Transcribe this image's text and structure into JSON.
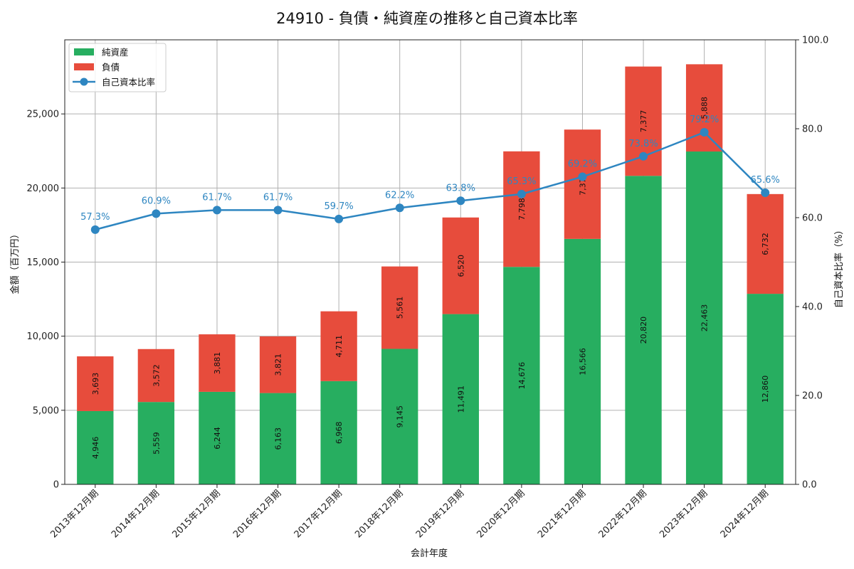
{
  "chart_data": {
    "type": "bar",
    "stacked": true,
    "title": "24910 - 負債・純資産の推移と自己資本比率",
    "xlabel": "会計年度",
    "ylabel": "金額（百万円）",
    "y2label": "自己資本比率（%）",
    "ylim": [
      0,
      30000
    ],
    "y2lim": [
      0,
      100
    ],
    "yticks": [
      "0",
      "5,000",
      "10,000",
      "15,000",
      "20,000",
      "25,000"
    ],
    "y2ticks": [
      "0.0",
      "20.0",
      "40.0",
      "60.0",
      "80.0",
      "100.0"
    ],
    "grid": true,
    "legend_position": "top-left",
    "categories": [
      "2013年12月期",
      "2014年12月期",
      "2015年12月期",
      "2016年12月期",
      "2017年12月期",
      "2018年12月期",
      "2019年12月期",
      "2020年12月期",
      "2021年12月期",
      "2022年12月期",
      "2023年12月期",
      "2024年12月期"
    ],
    "series": [
      {
        "name": "純資産",
        "kind": "bar",
        "color": "#27ae60",
        "values": [
          4946,
          5559,
          6244,
          6163,
          6968,
          9145,
          11491,
          14676,
          16566,
          20820,
          22463,
          12860
        ],
        "labels": [
          "4,946",
          "5,559",
          "6,244",
          "6,163",
          "6,968",
          "9,145",
          "11,491",
          "14,676",
          "16,566",
          "20,820",
          "22,463",
          "12,860"
        ]
      },
      {
        "name": "負債",
        "kind": "bar",
        "color": "#e74c3c",
        "values": [
          3693,
          3572,
          3881,
          3821,
          4711,
          5561,
          6520,
          7798,
          7378,
          7377,
          5888,
          6732
        ],
        "labels": [
          "3,693",
          "3,572",
          "3,881",
          "3,821",
          "4,711",
          "5,561",
          "6,520",
          "7,798",
          "7,378",
          "7,377",
          "5,888",
          "6,732"
        ]
      },
      {
        "name": "自己資本比率",
        "kind": "line",
        "axis": "right",
        "color": "#2e86c1",
        "values": [
          57.3,
          60.9,
          61.7,
          61.7,
          59.7,
          62.2,
          63.8,
          65.3,
          69.2,
          73.8,
          79.2,
          65.6
        ],
        "labels": [
          "57.3%",
          "60.9%",
          "61.7%",
          "61.7%",
          "59.7%",
          "62.2%",
          "63.8%",
          "65.3%",
          "69.2%",
          "73.8%",
          "79.2%",
          "65.6%"
        ]
      }
    ]
  }
}
